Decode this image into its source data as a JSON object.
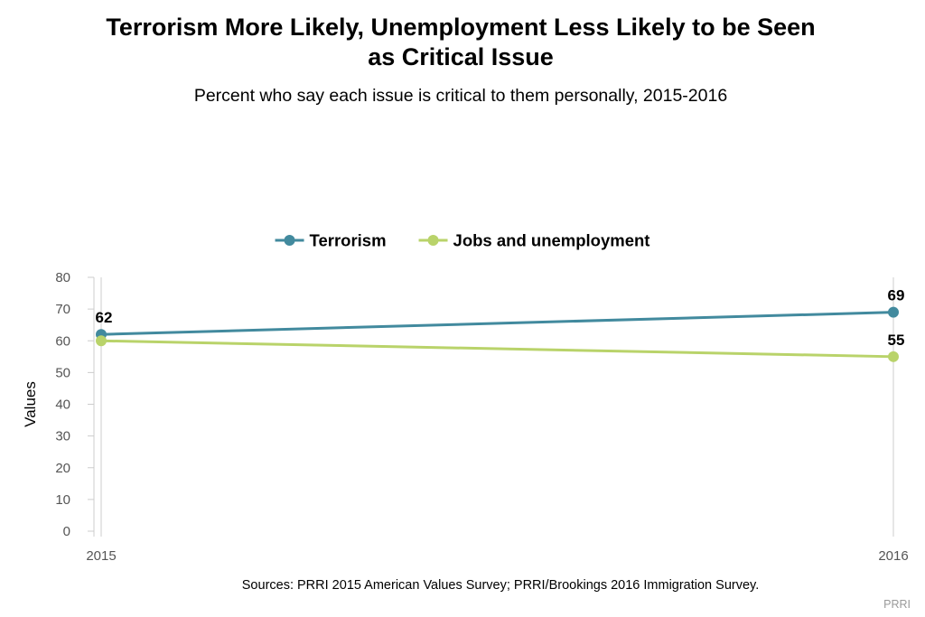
{
  "chart_data": {
    "type": "line",
    "title_lines": [
      "Terrorism More Likely, Unemployment Less Likely to be Seen",
      "as Critical Issue"
    ],
    "subtitle": "Percent who say each issue is critical to them personally, 2015-2016",
    "x": [
      "2015",
      "2016"
    ],
    "series": [
      {
        "name": "Terrorism",
        "color": "#428a9e",
        "values": [
          62,
          69
        ]
      },
      {
        "name": "Jobs and unemployment",
        "color": "#b9d36a",
        "values": [
          60,
          55
        ]
      }
    ],
    "data_labels": [
      {
        "series": 0,
        "point": 0,
        "text": "62"
      },
      {
        "series": 0,
        "point": 1,
        "text": "69"
      },
      {
        "series": 1,
        "point": 1,
        "text": "55"
      }
    ],
    "ylabel": "Values",
    "xlabel": "",
    "ylim": [
      0,
      80
    ],
    "yticks": [
      0,
      10,
      20,
      30,
      40,
      50,
      60,
      70,
      80
    ],
    "grid": false,
    "legend_position": "top-center"
  },
  "footer": {
    "source": "Sources: PRRI 2015 American Values Survey; PRRI/Brookings 2016 Immigration Survey.",
    "credit": "PRRI"
  }
}
